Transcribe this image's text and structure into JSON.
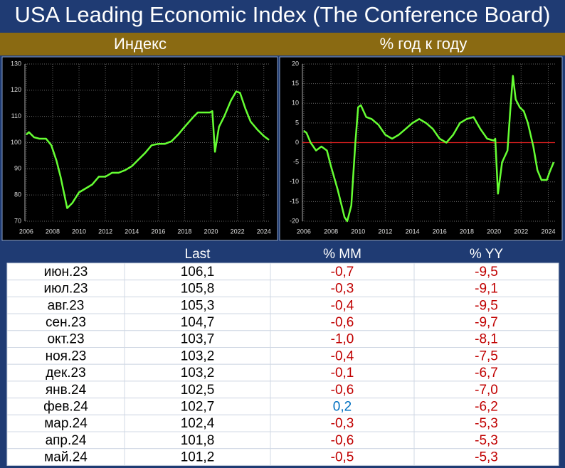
{
  "title": "USA Leading Economic Index (The Conference Board)",
  "chart_data": [
    {
      "type": "line",
      "title": "Индекс",
      "color": "#66ff33",
      "grid": true,
      "x": [
        2006,
        2006.2,
        2006.6,
        2007,
        2007.5,
        2007.9,
        2008.3,
        2008.6,
        2009.1,
        2009.5,
        2010,
        2010.5,
        2011,
        2011.5,
        2012,
        2012.5,
        2013,
        2013.5,
        2014,
        2014.5,
        2015,
        2015.5,
        2016,
        2016.5,
        2017,
        2017.5,
        2018,
        2018.7,
        2019,
        2019.5,
        2019.9,
        2020.1,
        2020.3,
        2020.6,
        2021,
        2021.5,
        2021.9,
        2022.2,
        2022.6,
        2023,
        2023.5,
        2024,
        2024.4
      ],
      "values": [
        103,
        104,
        102,
        101.5,
        101.5,
        99,
        93,
        87,
        75,
        77,
        81,
        82.5,
        84,
        87,
        87,
        88.5,
        88.5,
        89.5,
        91,
        93.5,
        96,
        99,
        99.5,
        99.5,
        100.5,
        103,
        106,
        110,
        111.5,
        111.5,
        111.5,
        112,
        96.5,
        106,
        110,
        116,
        119.5,
        119,
        113,
        108,
        105,
        102.5,
        101
      ],
      "xlim": [
        2005.9,
        2024.5
      ],
      "xticks": [
        2006,
        2008,
        2010,
        2012,
        2014,
        2016,
        2018,
        2020,
        2022,
        2024
      ],
      "ylim": [
        70,
        130
      ],
      "yticks": [
        70,
        80,
        90,
        100,
        110,
        120,
        130
      ]
    },
    {
      "type": "line",
      "title": "% год к году",
      "color": "#66ff33",
      "grid": true,
      "zero_line_color": "#e02020",
      "x": [
        2006,
        2006.2,
        2006.5,
        2006.9,
        2007.3,
        2007.7,
        2008,
        2008.5,
        2009,
        2009.2,
        2009.5,
        2009.8,
        2010,
        2010.2,
        2010.6,
        2011,
        2011.5,
        2012,
        2012.5,
        2013,
        2013.5,
        2014,
        2014.5,
        2015,
        2015.5,
        2016,
        2016.5,
        2017,
        2017.5,
        2018,
        2018.5,
        2019,
        2019.5,
        2020,
        2020.1,
        2020.3,
        2020.6,
        2021,
        2021.2,
        2021.4,
        2021.6,
        2021.9,
        2022.2,
        2022.5,
        2022.9,
        2023.2,
        2023.5,
        2023.9,
        2024.1,
        2024.4
      ],
      "values": [
        3,
        2.5,
        0,
        -2,
        -1,
        -2,
        -6,
        -12,
        -19,
        -20,
        -16,
        0,
        9,
        9.5,
        6.5,
        6,
        4.5,
        2,
        1,
        2,
        3.5,
        5,
        6,
        5,
        3.5,
        1,
        0,
        2,
        5,
        6,
        6.5,
        3.5,
        1,
        0.5,
        1,
        -13,
        -5,
        -2,
        8,
        17,
        11,
        9,
        8,
        5,
        -1,
        -7,
        -9.5,
        -9.5,
        -7.5,
        -5
      ],
      "xlim": [
        2005.9,
        2024.5
      ],
      "xticks": [
        2006,
        2008,
        2010,
        2012,
        2014,
        2016,
        2018,
        2020,
        2022,
        2024
      ],
      "ylim": [
        -20,
        20
      ],
      "yticks": [
        -20,
        -15,
        -10,
        -5,
        0,
        5,
        10,
        15,
        20
      ]
    }
  ],
  "table": {
    "negative_color": "#c00000",
    "positive_color": "#0070c0",
    "header": [
      "Last",
      "% MM",
      "% YY"
    ],
    "rows": [
      [
        "июн.23",
        "106,1",
        "-0,7",
        "-9,5"
      ],
      [
        "июл.23",
        "105,8",
        "-0,3",
        "-9,1"
      ],
      [
        "авг.23",
        "105,3",
        "-0,4",
        "-9,5"
      ],
      [
        "сен.23",
        "104,7",
        "-0,6",
        "-9,7"
      ],
      [
        "окт.23",
        "103,7",
        "-1,0",
        "-8,1"
      ],
      [
        "ноя.23",
        "103,2",
        "-0,4",
        "-7,5"
      ],
      [
        "дек.23",
        "103,2",
        "-0,1",
        "-6,7"
      ],
      [
        "янв.24",
        "102,5",
        "-0,6",
        "-7,0"
      ],
      [
        "фев.24",
        "102,7",
        "0,2",
        "-6,2"
      ],
      [
        "мар.24",
        "102,4",
        "-0,3",
        "-5,3"
      ],
      [
        "апр.24",
        "101,8",
        "-0,6",
        "-5,3"
      ],
      [
        "май.24",
        "101,2",
        "-0,5",
        "-5,3"
      ]
    ]
  }
}
